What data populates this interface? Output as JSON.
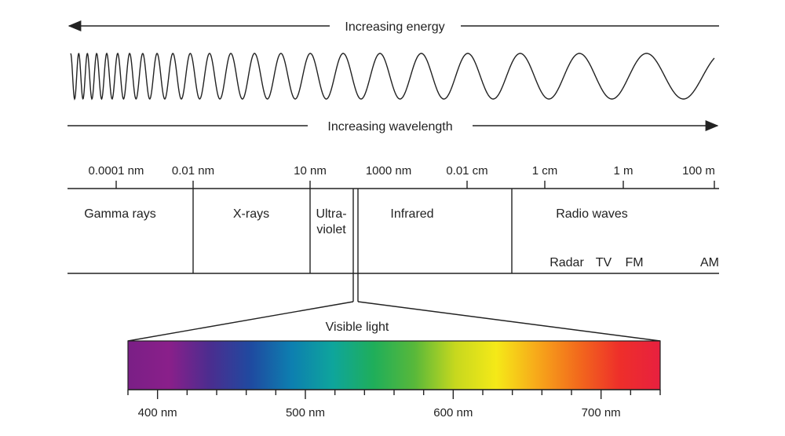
{
  "energy_label": "Increasing energy",
  "wavelength_label": "Increasing wavelength",
  "scale_ticks": [
    "0.0001 nm",
    "0.01 nm",
    "10 nm",
    "1000 nm",
    "0.01 cm",
    "1 cm",
    "1 m",
    "100 m"
  ],
  "bands": {
    "gamma": "Gamma rays",
    "xrays": "X-rays",
    "uv_line1": "Ultra-",
    "uv_line2": "violet",
    "infrared": "Infrared",
    "radio": "Radio waves"
  },
  "radio_subbands": [
    "Radar",
    "TV",
    "FM",
    "AM"
  ],
  "visible_label": "Visible light",
  "visible_scale": {
    "unit": "nm",
    "min": 380,
    "max": 740,
    "labels": [
      "400 nm",
      "500 nm",
      "600 nm",
      "700 nm"
    ],
    "label_values": [
      400,
      500,
      600,
      700
    ],
    "minor_step": 20
  },
  "colors": {
    "ink": "#222222",
    "spectrum": [
      "#7a1f86",
      "#8a1f8a",
      "#4b2d8f",
      "#1f4aa0",
      "#0d7fb0",
      "#0ea59c",
      "#1fae5a",
      "#58b83a",
      "#c7d81e",
      "#f5e918",
      "#f7a81a",
      "#f26a1c",
      "#ee2f2a",
      "#e8203f"
    ]
  }
}
